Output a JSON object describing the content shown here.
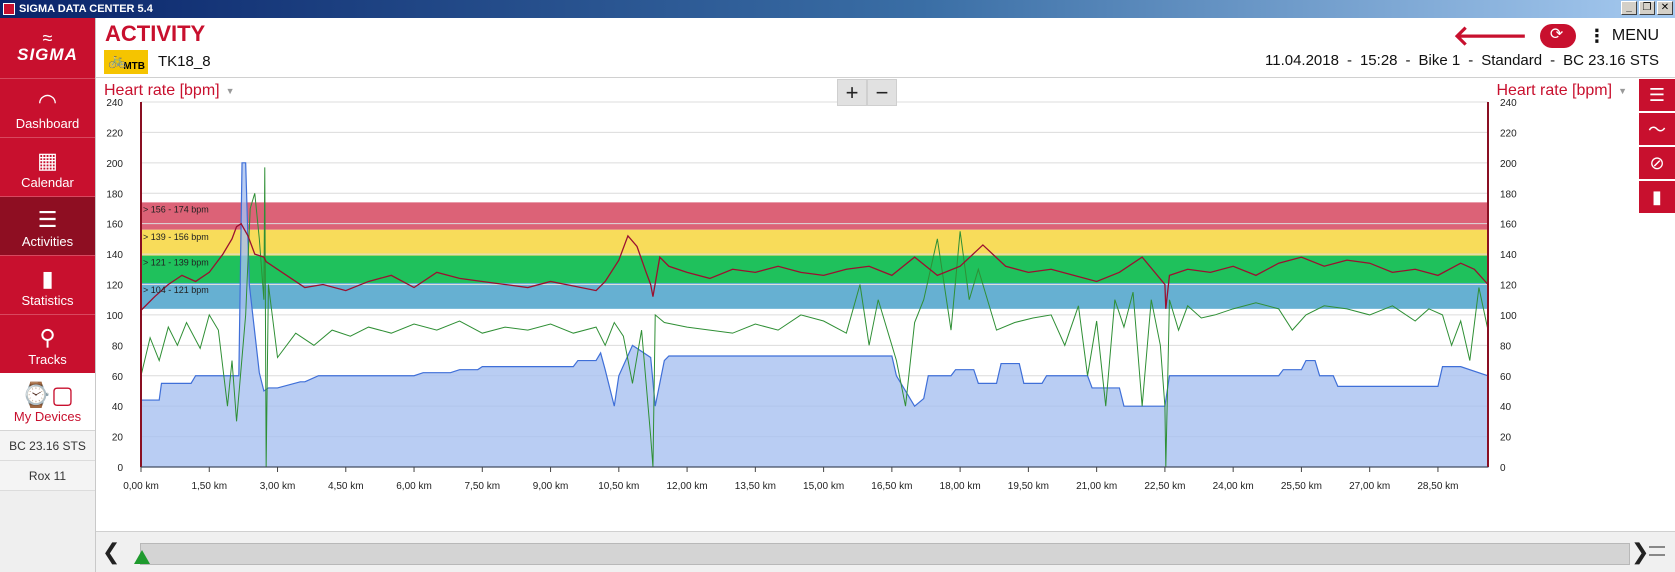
{
  "window": {
    "title": "SIGMA DATA CENTER 5.4",
    "btn_min": "_",
    "btn_restore": "❐",
    "btn_close": "✕"
  },
  "sidebar": {
    "logo": "SIGMA",
    "items": [
      {
        "label": "Dashboard",
        "icon": "dashboard-icon",
        "glyph": "◠"
      },
      {
        "label": "Calendar",
        "icon": "calendar-icon",
        "glyph": "▦"
      },
      {
        "label": "Activities",
        "icon": "list-icon",
        "glyph": "☰"
      },
      {
        "label": "Statistics",
        "icon": "bar-chart-icon",
        "glyph": "▮"
      },
      {
        "label": "Tracks",
        "icon": "map-pin-icon",
        "glyph": "⚲"
      }
    ],
    "my_devices": {
      "label": "My Devices",
      "glyph": "⌚▢"
    },
    "devices": [
      "BC 23.16 STS",
      "Rox 11"
    ]
  },
  "header": {
    "title": "ACTIVITY",
    "sport_badge": "MTB",
    "activity_name": "TK18_8",
    "date": "11.04.2018",
    "time": "15:28",
    "bike": "Bike 1",
    "mode": "Standard",
    "device": "BC 23.16 STS",
    "menu_label": "MENU",
    "back_glyph": "🡐",
    "sep": "-"
  },
  "chart_controls": {
    "left_axis_label": "Heart rate [bpm]",
    "right_axis_label": "Heart rate [bpm]",
    "zoom_in": "+",
    "zoom_out": "−"
  },
  "right_toolbar": [
    {
      "icon": "list-icon",
      "glyph": "☰"
    },
    {
      "icon": "line-chart-icon",
      "glyph": "〜"
    },
    {
      "icon": "disable-icon",
      "glyph": "⊘"
    },
    {
      "icon": "bar-chart-icon",
      "glyph": "▮"
    }
  ],
  "scroll": {
    "left_glyph": "❮",
    "right_glyph": "❯"
  },
  "colors": {
    "brand_red": "#c8102e",
    "zone_red": "#dc6277",
    "zone_yellow": "#f8dc5a",
    "zone_green": "#1fc15c",
    "zone_blue": "#66b0d2",
    "altitude_fill": "#a8c0f0",
    "altitude_line": "#3f6fd8",
    "hr_line": "#9b1030",
    "speed_line": "#2f8f35"
  },
  "chart_data": {
    "type": "line",
    "xlabel": "",
    "x_ticks": [
      "0,00 km",
      "1,50 km",
      "3,00 km",
      "4,50 km",
      "6,00 km",
      "7,50 km",
      "9,00 km",
      "10,50 km",
      "12,00 km",
      "13,50 km",
      "15,00 km",
      "16,50 km",
      "18,00 km",
      "19,50 km",
      "21,00 km",
      "22,50 km",
      "24,00 km",
      "25,50 km",
      "27,00 km",
      "28,50 km"
    ],
    "x_tick_values": [
      0,
      1.5,
      3,
      4.5,
      6,
      7.5,
      9,
      10.5,
      12,
      13.5,
      15,
      16.5,
      18,
      19.5,
      21,
      22.5,
      24,
      25.5,
      27,
      28.5
    ],
    "xlim": [
      0,
      29.6
    ],
    "ylim": [
      0,
      240
    ],
    "y_ticks": [
      0,
      20,
      40,
      60,
      80,
      100,
      120,
      140,
      160,
      180,
      200,
      220,
      240
    ],
    "ylabel_left": "Heart rate [bpm]",
    "ylabel_right": "Heart rate [bpm]",
    "zones": [
      {
        "label": "156 - 174 bpm",
        "from": 156,
        "to": 174,
        "color": "#dc6277"
      },
      {
        "label": "139 - 156 bpm",
        "from": 139,
        "to": 156,
        "color": "#f8dc5a"
      },
      {
        "label": "121 - 139 bpm",
        "from": 121,
        "to": 139,
        "color": "#1fc15c"
      },
      {
        "label": "104 - 121 bpm",
        "from": 104,
        "to": 121,
        "color": "#66b0d2"
      }
    ],
    "series": [
      {
        "role": "altitude",
        "x": [
          0,
          0.4,
          0.45,
          1.1,
          1.2,
          2.15,
          2.22,
          2.3,
          2.38,
          2.6,
          2.7,
          2.8,
          3.0,
          3.5,
          3.6,
          3.9,
          4.0,
          6.0,
          6.2,
          6.8,
          7.0,
          7.4,
          7.5,
          9.5,
          9.6,
          10.0,
          10.1,
          10.2,
          10.4,
          10.5,
          10.8,
          11.2,
          11.3,
          11.5,
          11.6,
          16.5,
          16.6,
          16.8,
          17.0,
          17.2,
          17.3,
          17.8,
          17.9,
          18.3,
          18.4,
          18.8,
          18.9,
          19.3,
          19.4,
          19.8,
          19.9,
          20.8,
          20.9,
          21.5,
          21.6,
          22.5,
          22.6,
          25.0,
          25.1,
          25.5,
          25.6,
          25.8,
          25.9,
          26.2,
          26.3,
          28.5,
          28.6,
          29.0,
          29.6
        ],
        "y": [
          44,
          44,
          55,
          55,
          60,
          60,
          200,
          200,
          120,
          62,
          50,
          52,
          52,
          56,
          56,
          60,
          60,
          60,
          62,
          62,
          64,
          64,
          66,
          66,
          70,
          70,
          75,
          64,
          40,
          60,
          80,
          72,
          40,
          70,
          73,
          73,
          60,
          50,
          40,
          45,
          60,
          60,
          64,
          64,
          55,
          55,
          68,
          68,
          55,
          55,
          60,
          60,
          52,
          52,
          40,
          40,
          60,
          60,
          64,
          64,
          70,
          70,
          60,
          60,
          53,
          53,
          66,
          66,
          60
        ]
      },
      {
        "role": "heart_rate",
        "x": [
          0,
          0.3,
          0.6,
          0.9,
          1.2,
          1.5,
          1.8,
          2.0,
          2.1,
          2.2,
          2.35,
          2.5,
          2.7,
          2.75,
          3.0,
          3.3,
          3.6,
          4.0,
          4.5,
          5.0,
          5.5,
          6.0,
          6.5,
          7.0,
          7.5,
          8.0,
          8.5,
          9.0,
          9.5,
          10.0,
          10.2,
          10.5,
          10.7,
          10.9,
          11.1,
          11.2,
          11.25,
          11.4,
          11.6,
          12.0,
          12.5,
          13.0,
          13.5,
          14.0,
          14.5,
          15.0,
          15.5,
          16.0,
          16.5,
          17.0,
          17.5,
          18.0,
          18.5,
          19.0,
          19.5,
          20.0,
          20.5,
          21.0,
          21.5,
          22.0,
          22.5,
          22.52,
          22.6,
          23.0,
          23.5,
          24.0,
          24.5,
          25.0,
          25.5,
          26.0,
          26.5,
          27.0,
          27.5,
          28.0,
          28.5,
          29.0,
          29.3,
          29.6
        ],
        "y": [
          103,
          112,
          120,
          126,
          122,
          128,
          140,
          150,
          158,
          160,
          152,
          140,
          138,
          135,
          130,
          124,
          118,
          120,
          116,
          122,
          126,
          118,
          128,
          124,
          122,
          120,
          118,
          122,
          119,
          116,
          122,
          136,
          152,
          145,
          128,
          120,
          112,
          138,
          132,
          128,
          124,
          130,
          128,
          132,
          128,
          126,
          130,
          132,
          126,
          138,
          126,
          132,
          146,
          132,
          128,
          130,
          126,
          122,
          128,
          138,
          120,
          104,
          126,
          130,
          128,
          132,
          126,
          134,
          138,
          132,
          136,
          134,
          128,
          130,
          126,
          134,
          130,
          120
        ]
      },
      {
        "role": "speed",
        "x": [
          0,
          0.2,
          0.4,
          0.6,
          0.8,
          1.0,
          1.3,
          1.5,
          1.7,
          1.9,
          2.0,
          2.1,
          2.3,
          2.4,
          2.5,
          2.6,
          2.7,
          2.72,
          2.75,
          2.8,
          3.0,
          3.4,
          3.8,
          4.2,
          4.6,
          5.0,
          5.5,
          6.0,
          6.5,
          7.0,
          7.5,
          8.0,
          8.5,
          9.0,
          9.5,
          10.0,
          10.2,
          10.4,
          10.6,
          10.8,
          11.0,
          11.2,
          11.25,
          11.3,
          11.5,
          12.0,
          12.5,
          13.0,
          13.5,
          14.0,
          14.5,
          15.0,
          15.5,
          15.8,
          16.0,
          16.2,
          16.4,
          16.6,
          16.8,
          17.0,
          17.2,
          17.5,
          17.8,
          18.0,
          18.2,
          18.4,
          18.8,
          19.2,
          19.6,
          20.0,
          20.3,
          20.6,
          20.8,
          21.0,
          21.2,
          21.4,
          21.6,
          21.8,
          22.0,
          22.2,
          22.4,
          22.5,
          22.52,
          22.6,
          22.8,
          23.0,
          23.3,
          23.6,
          24.0,
          24.5,
          25.0,
          25.3,
          25.6,
          26.0,
          26.5,
          27.0,
          27.5,
          28.0,
          28.3,
          28.6,
          28.8,
          29.0,
          29.2,
          29.4,
          29.6
        ],
        "y": [
          60,
          85,
          70,
          92,
          80,
          95,
          78,
          100,
          90,
          40,
          70,
          30,
          100,
          170,
          180,
          150,
          110,
          197,
          0,
          120,
          72,
          88,
          80,
          90,
          86,
          92,
          88,
          94,
          90,
          96,
          88,
          92,
          90,
          94,
          88,
          92,
          80,
          95,
          86,
          55,
          90,
          20,
          0,
          100,
          95,
          92,
          90,
          88,
          94,
          90,
          100,
          96,
          88,
          120,
          80,
          110,
          90,
          70,
          40,
          95,
          110,
          150,
          90,
          155,
          110,
          130,
          90,
          95,
          98,
          100,
          80,
          106,
          60,
          96,
          40,
          110,
          92,
          115,
          40,
          110,
          80,
          40,
          0,
          110,
          90,
          106,
          98,
          100,
          104,
          108,
          104,
          90,
          100,
          106,
          104,
          100,
          106,
          96,
          104,
          100,
          80,
          96,
          70,
          118,
          90
        ]
      }
    ]
  }
}
